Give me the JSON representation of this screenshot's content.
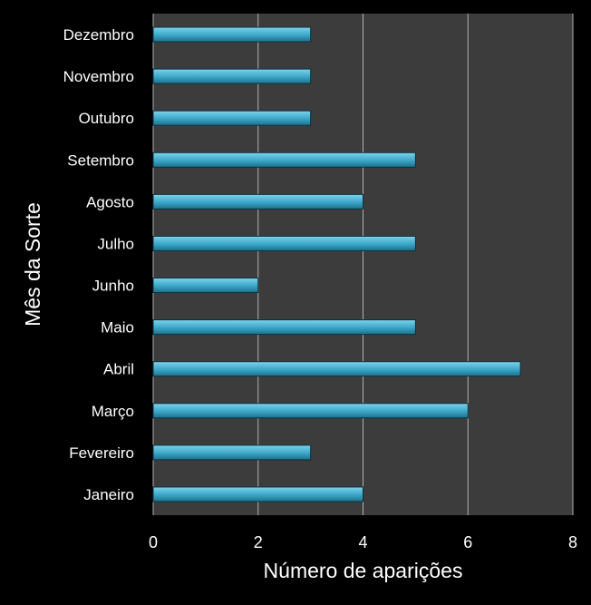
{
  "chart_data": {
    "type": "bar",
    "orientation": "horizontal",
    "categories": [
      "Janeiro",
      "Fevereiro",
      "Março",
      "Abril",
      "Maio",
      "Junho",
      "Julho",
      "Agosto",
      "Setembro",
      "Outubro",
      "Novembro",
      "Dezembro"
    ],
    "values": [
      4,
      3,
      6,
      7,
      5,
      2,
      5,
      4,
      5,
      3,
      3,
      3
    ],
    "title": "",
    "xlabel": "Número de aparições",
    "ylabel": "Mês da Sorte",
    "xlim": [
      0,
      8
    ],
    "xticks": [
      "0",
      "2",
      "4",
      "6",
      "8"
    ],
    "grid": "vertical",
    "legend": "none",
    "colors": {
      "page_background": "#000000",
      "plot_background": "#3c3c3c",
      "gridline": "#b0b0b0",
      "bar_top": "#7fd3ea",
      "bar_mid": "#3aa6c8",
      "bar_bottom": "#1f6f8a",
      "bar_edge": "#0b3340",
      "text": "#ffffff"
    }
  }
}
